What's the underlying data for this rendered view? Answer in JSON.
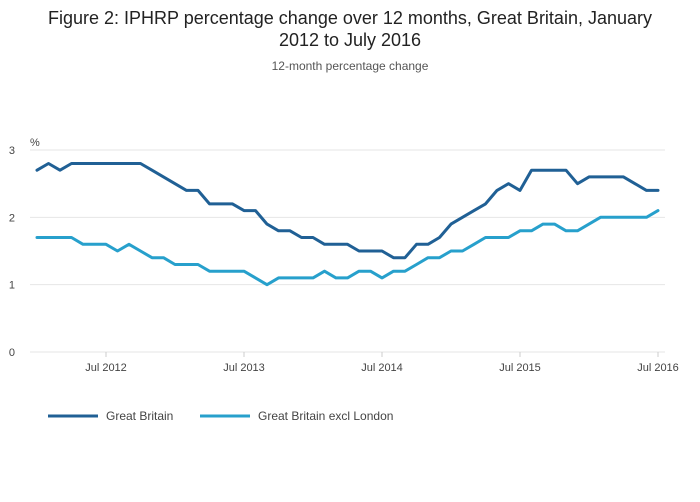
{
  "chart_data": {
    "type": "line",
    "title_line1": "Figure 2: IPHRP percentage change over 12 months, Great Britain, January",
    "title_line2": "2012 to July 2016",
    "subtitle": "12-month percentage change",
    "ylabel": "%",
    "xlabel": "",
    "ylim": [
      0,
      3
    ],
    "yticks": [
      0,
      1,
      2,
      3
    ],
    "xlim": [
      0,
      55
    ],
    "xticks": [
      {
        "index": 6,
        "label": "Jul 2012"
      },
      {
        "index": 18,
        "label": "Jul 2013"
      },
      {
        "index": 30,
        "label": "Jul 2014"
      },
      {
        "index": 42,
        "label": "Jul 2015"
      },
      {
        "index": 54,
        "label": "Jul 2016"
      }
    ],
    "x": [
      "Jan 2012",
      "Feb 2012",
      "Mar 2012",
      "Apr 2012",
      "May 2012",
      "Jun 2012",
      "Jul 2012",
      "Aug 2012",
      "Sep 2012",
      "Oct 2012",
      "Nov 2012",
      "Dec 2012",
      "Jan 2013",
      "Feb 2013",
      "Mar 2013",
      "Apr 2013",
      "May 2013",
      "Jun 2013",
      "Jul 2013",
      "Aug 2013",
      "Sep 2013",
      "Oct 2013",
      "Nov 2013",
      "Dec 2013",
      "Jan 2014",
      "Feb 2014",
      "Mar 2014",
      "Apr 2014",
      "May 2014",
      "Jun 2014",
      "Jul 2014",
      "Aug 2014",
      "Sep 2014",
      "Oct 2014",
      "Nov 2014",
      "Dec 2014",
      "Jan 2015",
      "Feb 2015",
      "Mar 2015",
      "Apr 2015",
      "May 2015",
      "Jun 2015",
      "Jul 2015",
      "Aug 2015",
      "Sep 2015",
      "Oct 2015",
      "Nov 2015",
      "Dec 2015",
      "Jan 2016",
      "Feb 2016",
      "Mar 2016",
      "Apr 2016",
      "May 2016",
      "Jun 2016",
      "Jul 2016"
    ],
    "series": [
      {
        "name": "Great Britain",
        "color": "#206095",
        "values": [
          2.7,
          2.8,
          2.7,
          2.8,
          2.8,
          2.8,
          2.8,
          2.8,
          2.8,
          2.8,
          2.7,
          2.6,
          2.5,
          2.4,
          2.4,
          2.2,
          2.2,
          2.2,
          2.1,
          2.1,
          1.9,
          1.8,
          1.8,
          1.7,
          1.7,
          1.6,
          1.6,
          1.6,
          1.5,
          1.5,
          1.5,
          1.4,
          1.4,
          1.6,
          1.6,
          1.7,
          1.9,
          2.0,
          2.1,
          2.2,
          2.4,
          2.5,
          2.4,
          2.7,
          2.7,
          2.7,
          2.7,
          2.5,
          2.6,
          2.6,
          2.6,
          2.6,
          2.5,
          2.4,
          2.4
        ]
      },
      {
        "name": "Great Britain excl London",
        "color": "#27a0cc",
        "values": [
          1.7,
          1.7,
          1.7,
          1.7,
          1.6,
          1.6,
          1.6,
          1.5,
          1.6,
          1.5,
          1.4,
          1.4,
          1.3,
          1.3,
          1.3,
          1.2,
          1.2,
          1.2,
          1.2,
          1.1,
          1.0,
          1.1,
          1.1,
          1.1,
          1.1,
          1.2,
          1.1,
          1.1,
          1.2,
          1.2,
          1.1,
          1.2,
          1.2,
          1.3,
          1.4,
          1.4,
          1.5,
          1.5,
          1.6,
          1.7,
          1.7,
          1.7,
          1.8,
          1.8,
          1.9,
          1.9,
          1.8,
          1.8,
          1.9,
          2.0,
          2.0,
          2.0,
          2.0,
          2.0,
          2.1
        ]
      }
    ],
    "grid": true,
    "legend_position": "bottom-left"
  }
}
